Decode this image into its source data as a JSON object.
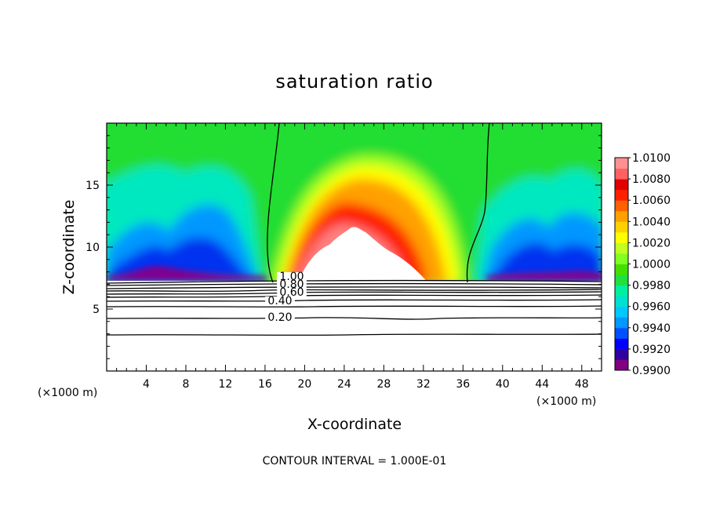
{
  "chart_data": {
    "type": "heatmap",
    "title": "saturation ratio",
    "xlabel": "X-coordinate",
    "ylabel": "Z-coordinate",
    "x_unit": "(×1000 m)",
    "z_unit": "(×1000 m)",
    "xlim": [
      0,
      50
    ],
    "ylim": [
      0,
      20
    ],
    "x_ticks": [
      4,
      8,
      12,
      16,
      20,
      24,
      28,
      32,
      36,
      40,
      44,
      48
    ],
    "y_ticks": [
      5,
      10,
      15
    ],
    "colorbar": {
      "min": 0.99,
      "max": 1.01,
      "labels": [
        "1.0100",
        "1.0080",
        "1.0060",
        "1.0040",
        "1.0020",
        "1.0000",
        "0.9980",
        "0.9960",
        "0.9940",
        "0.9920",
        "0.9900"
      ],
      "colors": [
        "#800080",
        "#3000a0",
        "#0000ff",
        "#0050ff",
        "#0098ff",
        "#00c8ff",
        "#00e0d0",
        "#00f0a0",
        "#20e040",
        "#40e000",
        "#80ff20",
        "#c0ff20",
        "#ffff00",
        "#ffd000",
        "#ffa000",
        "#ff6000",
        "#ff2000",
        "#e00000",
        "#ff6060",
        "#ff9090"
      ]
    },
    "contours": {
      "interval": 0.1,
      "labels": [
        "1.00",
        "0.80",
        "0.60",
        "0.40",
        "0.20"
      ],
      "label_values": [
        1.0,
        0.8,
        0.6,
        0.4,
        0.2
      ]
    },
    "footer": "CONTOUR INTERVAL = 1.000E-01"
  }
}
